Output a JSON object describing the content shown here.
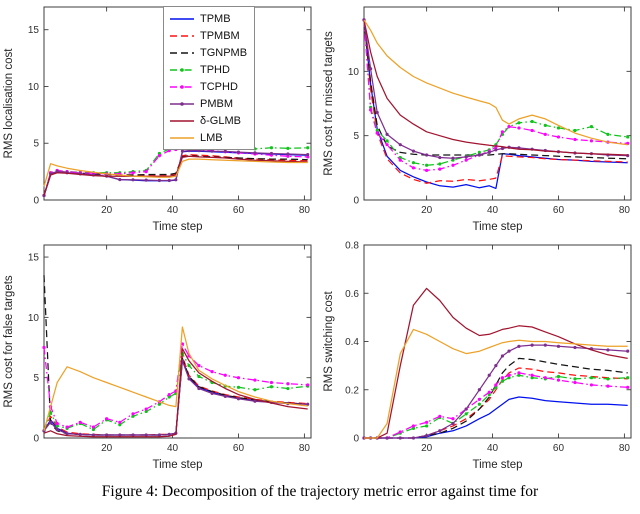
{
  "caption": "Figure 4: Decomposition of the trajectory metric error against time for",
  "legend": {
    "position": "inside-top-right-of-first-subplot",
    "entries": [
      "TPMB",
      "TPMBM",
      "TGNPMB",
      "TPHD",
      "TCPHD",
      "PMBM",
      "δ-GLMB",
      "LMB"
    ]
  },
  "styles": {
    "TPMB": {
      "color": "#0010EE",
      "dash": "solid",
      "marker": false
    },
    "TPMBM": {
      "color": "#FF1010",
      "dash": "dashed",
      "marker": false
    },
    "TGNPMB": {
      "color": "#151515",
      "dash": "dashed",
      "marker": false
    },
    "TPHD": {
      "color": "#10C41C",
      "dash": "dashdot",
      "marker": true
    },
    "TCPHD": {
      "color": "#FF00FF",
      "dash": "dashdot",
      "marker": true
    },
    "PMBM": {
      "color": "#7E2F8E",
      "dash": "solid",
      "marker": true
    },
    "δ-GLMB": {
      "color": "#A2142F",
      "dash": "solid",
      "marker": false
    },
    "LMB": {
      "color": "#EDA128",
      "dash": "solid",
      "marker": false
    }
  },
  "chart_data": [
    {
      "type": "line",
      "title": "",
      "xlabel": "Time step",
      "ylabel": "RMS localisation cost",
      "xlim": [
        1,
        82
      ],
      "ylim": [
        0,
        17
      ],
      "xticks": [
        20,
        40,
        60,
        80
      ],
      "yticks": [
        0,
        5,
        10,
        15
      ],
      "x": [
        1,
        3,
        5,
        8,
        12,
        16,
        20,
        24,
        28,
        32,
        36,
        39,
        41,
        43,
        45,
        48,
        52,
        56,
        60,
        65,
        70,
        75,
        81
      ],
      "series": [
        {
          "name": "TPMB",
          "values": [
            0.4,
            2.2,
            2.5,
            2.4,
            2.3,
            2.2,
            2.1,
            1.8,
            1.75,
            1.7,
            1.7,
            1.7,
            1.75,
            4.25,
            4.3,
            4.3,
            4.25,
            4.2,
            4.15,
            4.1,
            4.05,
            4.0,
            3.95
          ]
        },
        {
          "name": "TPMBM",
          "values": [
            0.4,
            2.3,
            2.5,
            2.45,
            2.35,
            2.3,
            2.25,
            2.2,
            2.2,
            2.2,
            2.2,
            2.2,
            2.3,
            3.9,
            4.0,
            3.95,
            3.9,
            3.8,
            3.7,
            3.6,
            3.55,
            3.5,
            3.45
          ]
        },
        {
          "name": "TGNPMB",
          "values": [
            0.4,
            2.3,
            2.5,
            2.45,
            2.35,
            2.3,
            2.25,
            2.2,
            2.2,
            2.25,
            2.25,
            2.25,
            2.35,
            3.8,
            3.9,
            3.85,
            3.8,
            3.75,
            3.7,
            3.65,
            3.6,
            3.6,
            3.55
          ]
        },
        {
          "name": "TPHD",
          "values": [
            0.4,
            2.4,
            2.6,
            2.5,
            2.45,
            2.4,
            2.4,
            2.4,
            2.5,
            2.6,
            4.1,
            4.5,
            4.55,
            4.6,
            4.65,
            4.6,
            4.55,
            4.65,
            4.6,
            4.5,
            4.6,
            4.55,
            4.6
          ]
        },
        {
          "name": "TCPHD",
          "values": [
            0.4,
            2.4,
            2.6,
            2.5,
            2.4,
            2.35,
            2.3,
            2.3,
            2.4,
            2.5,
            3.9,
            4.35,
            4.45,
            4.5,
            4.5,
            4.45,
            4.35,
            4.25,
            4.15,
            4.05,
            3.95,
            3.85,
            3.8
          ]
        },
        {
          "name": "PMBM",
          "values": [
            0.4,
            2.3,
            2.5,
            2.4,
            2.3,
            2.2,
            2.1,
            1.8,
            1.78,
            1.75,
            1.72,
            1.72,
            1.78,
            4.3,
            4.35,
            4.35,
            4.3,
            4.28,
            4.22,
            4.15,
            4.1,
            4.05,
            4.0
          ]
        },
        {
          "name": "δ-GLMB",
          "values": [
            0.4,
            2.2,
            2.4,
            2.35,
            2.25,
            2.15,
            2.1,
            2.1,
            2.1,
            2.1,
            2.1,
            2.1,
            2.2,
            3.75,
            3.85,
            3.8,
            3.75,
            3.7,
            3.6,
            3.5,
            3.45,
            3.4,
            3.35
          ]
        },
        {
          "name": "LMB",
          "values": [
            1.2,
            3.2,
            3.0,
            2.8,
            2.6,
            2.45,
            2.3,
            2.2,
            2.1,
            2.05,
            2.0,
            2.0,
            2.1,
            3.4,
            3.6,
            3.6,
            3.55,
            3.5,
            3.45,
            3.4,
            3.35,
            3.3,
            3.3
          ]
        }
      ]
    },
    {
      "type": "line",
      "title": "",
      "xlabel": "Time step",
      "ylabel": "RMS cost for missed targets",
      "xlim": [
        1,
        82
      ],
      "ylim": [
        0,
        15
      ],
      "xticks": [
        20,
        40,
        60,
        80
      ],
      "yticks": [
        0,
        5,
        10
      ],
      "x": [
        1,
        3,
        5,
        8,
        12,
        16,
        20,
        24,
        28,
        32,
        36,
        39,
        41,
        43,
        45,
        48,
        52,
        56,
        60,
        65,
        70,
        75,
        81
      ],
      "series": [
        {
          "name": "TPMB",
          "values": [
            14,
            9.0,
            5.5,
            3.4,
            2.3,
            1.8,
            1.4,
            1.1,
            1.0,
            1.2,
            0.95,
            1.1,
            0.9,
            3.6,
            3.55,
            3.45,
            3.35,
            3.25,
            3.15,
            3.1,
            3.0,
            2.95,
            2.9
          ]
        },
        {
          "name": "TPMBM",
          "values": [
            14,
            8.6,
            5.2,
            3.2,
            2.1,
            1.6,
            1.3,
            1.5,
            1.45,
            1.6,
            1.5,
            1.6,
            1.7,
            3.45,
            3.4,
            3.35,
            3.3,
            3.2,
            3.15,
            3.1,
            3.05,
            3.0,
            2.95
          ]
        },
        {
          "name": "TGNPMB",
          "values": [
            14,
            9.2,
            5.8,
            4.2,
            3.7,
            3.55,
            3.5,
            3.5,
            3.5,
            3.5,
            3.5,
            3.5,
            3.55,
            3.6,
            3.6,
            3.55,
            3.5,
            3.45,
            3.4,
            3.35,
            3.3,
            3.25,
            3.2
          ]
        },
        {
          "name": "TPHD",
          "values": [
            14,
            7.2,
            5.4,
            4.6,
            3.3,
            2.9,
            2.7,
            2.8,
            3.1,
            3.4,
            3.7,
            3.9,
            4.3,
            5.1,
            5.7,
            6.0,
            6.1,
            5.8,
            5.6,
            5.4,
            5.7,
            5.1,
            4.9
          ]
        },
        {
          "name": "TCPHD",
          "values": [
            14,
            7.0,
            5.2,
            4.3,
            3.1,
            2.5,
            2.3,
            2.4,
            2.7,
            3.1,
            3.5,
            3.8,
            4.1,
            5.3,
            5.7,
            5.6,
            5.4,
            5.1,
            4.9,
            4.7,
            4.6,
            4.5,
            4.4
          ]
        },
        {
          "name": "PMBM",
          "values": [
            14,
            10.2,
            6.8,
            5.1,
            4.3,
            3.8,
            3.5,
            3.3,
            3.25,
            3.35,
            3.5,
            3.7,
            3.9,
            4.0,
            4.1,
            4.05,
            3.95,
            3.85,
            3.75,
            3.65,
            3.6,
            3.5,
            3.45
          ]
        },
        {
          "name": "δ-GLMB",
          "values": [
            14,
            11.5,
            9.6,
            7.9,
            6.6,
            5.9,
            5.3,
            5.0,
            4.7,
            4.5,
            4.35,
            4.25,
            4.2,
            4.15,
            4.05,
            3.95,
            3.9,
            3.8,
            3.75,
            3.65,
            3.6,
            3.55,
            3.5
          ]
        },
        {
          "name": "LMB",
          "values": [
            14,
            13.2,
            12.2,
            11.2,
            10.3,
            9.6,
            9.1,
            8.7,
            8.3,
            8.0,
            7.7,
            7.5,
            7.2,
            6.2,
            5.9,
            6.3,
            6.6,
            6.3,
            5.8,
            5.2,
            4.8,
            4.5,
            4.3
          ]
        }
      ]
    },
    {
      "type": "line",
      "title": "",
      "xlabel": "Time step",
      "ylabel": "RMS cost for false targets",
      "xlim": [
        1,
        82
      ],
      "ylim": [
        0,
        16
      ],
      "xticks": [
        20,
        40,
        60,
        80
      ],
      "yticks": [
        0,
        5,
        10,
        15
      ],
      "x": [
        1,
        3,
        5,
        8,
        12,
        16,
        20,
        24,
        28,
        32,
        36,
        39,
        41,
        43,
        45,
        48,
        52,
        56,
        60,
        65,
        70,
        75,
        81
      ],
      "series": [
        {
          "name": "TPMB",
          "values": [
            0.6,
            1.5,
            0.8,
            0.4,
            0.3,
            0.25,
            0.25,
            0.25,
            0.25,
            0.25,
            0.25,
            0.3,
            0.4,
            6.5,
            5.0,
            4.2,
            3.8,
            3.5,
            3.3,
            3.1,
            3.0,
            2.9,
            2.8
          ]
        },
        {
          "name": "TPMBM",
          "values": [
            0.6,
            1.8,
            0.9,
            0.5,
            0.35,
            0.3,
            0.25,
            0.25,
            0.25,
            0.25,
            0.3,
            0.3,
            0.4,
            6.8,
            5.2,
            4.3,
            3.9,
            3.6,
            3.4,
            3.2,
            3.05,
            2.95,
            2.85
          ]
        },
        {
          "name": "TGNPMB",
          "values": [
            13.5,
            1.2,
            0.6,
            0.35,
            0.3,
            0.25,
            0.25,
            0.25,
            0.25,
            0.25,
            0.25,
            0.3,
            0.4,
            6.6,
            5.1,
            4.25,
            3.85,
            3.55,
            3.35,
            3.15,
            3.0,
            2.9,
            2.8
          ]
        },
        {
          "name": "TPHD",
          "values": [
            0.6,
            2.1,
            1.0,
            0.8,
            1.2,
            0.7,
            1.5,
            1.1,
            1.8,
            2.2,
            2.8,
            3.4,
            3.7,
            7.0,
            6.0,
            5.1,
            4.6,
            4.3,
            4.2,
            4.0,
            4.25,
            4.1,
            4.3
          ]
        },
        {
          "name": "TCPHD",
          "values": [
            7.5,
            2.6,
            1.2,
            0.9,
            1.3,
            0.9,
            1.6,
            1.3,
            2.0,
            2.4,
            3.0,
            3.6,
            3.9,
            7.8,
            6.8,
            6.0,
            5.5,
            5.2,
            5.0,
            4.8,
            4.6,
            4.5,
            4.4
          ]
        },
        {
          "name": "PMBM",
          "values": [
            0.6,
            1.3,
            0.7,
            0.35,
            0.3,
            0.25,
            0.25,
            0.25,
            0.25,
            0.25,
            0.25,
            0.3,
            0.4,
            6.4,
            4.9,
            4.1,
            3.7,
            3.45,
            3.25,
            3.05,
            2.95,
            2.85,
            2.8
          ]
        },
        {
          "name": "δ-GLMB",
          "values": [
            0.4,
            0.6,
            0.35,
            0.2,
            0.15,
            0.1,
            0.1,
            0.1,
            0.1,
            0.1,
            0.1,
            0.15,
            0.3,
            7.4,
            6.4,
            5.4,
            4.7,
            4.1,
            3.6,
            3.2,
            2.9,
            2.6,
            2.4
          ]
        },
        {
          "name": "LMB",
          "values": [
            0.6,
            2.6,
            4.6,
            5.9,
            5.5,
            5.0,
            4.6,
            4.2,
            3.8,
            3.4,
            3.0,
            2.7,
            2.6,
            9.2,
            7.0,
            5.6,
            4.9,
            4.35,
            3.85,
            3.4,
            3.05,
            2.85,
            2.65
          ]
        }
      ]
    },
    {
      "type": "line",
      "title": "",
      "xlabel": "Time step",
      "ylabel": "RMS switching cost",
      "xlim": [
        1,
        82
      ],
      "ylim": [
        0,
        0.8
      ],
      "xticks": [
        20,
        40,
        60,
        80
      ],
      "yticks": [
        0,
        0.2,
        0.4,
        0.6,
        0.8
      ],
      "x": [
        1,
        3,
        5,
        8,
        12,
        16,
        20,
        24,
        28,
        32,
        36,
        39,
        41,
        43,
        45,
        48,
        52,
        56,
        60,
        65,
        70,
        75,
        81
      ],
      "series": [
        {
          "name": "TPMB",
          "values": [
            0,
            0,
            0,
            0,
            0,
            0,
            0.005,
            0.02,
            0.03,
            0.05,
            0.08,
            0.1,
            0.12,
            0.14,
            0.16,
            0.17,
            0.165,
            0.155,
            0.15,
            0.145,
            0.14,
            0.14,
            0.135
          ]
        },
        {
          "name": "TPMBM",
          "values": [
            0,
            0,
            0,
            0,
            0,
            0,
            0.01,
            0.03,
            0.05,
            0.08,
            0.12,
            0.16,
            0.2,
            0.24,
            0.27,
            0.29,
            0.285,
            0.275,
            0.27,
            0.26,
            0.255,
            0.25,
            0.245
          ]
        },
        {
          "name": "TGNPMB",
          "values": [
            0,
            0,
            0,
            0,
            0,
            0,
            0.01,
            0.02,
            0.04,
            0.07,
            0.12,
            0.17,
            0.22,
            0.27,
            0.3,
            0.33,
            0.325,
            0.315,
            0.305,
            0.295,
            0.285,
            0.28,
            0.27
          ]
        },
        {
          "name": "TPHD",
          "values": [
            0,
            0,
            0,
            0,
            0.02,
            0.04,
            0.05,
            0.085,
            0.06,
            0.1,
            0.14,
            0.18,
            0.21,
            0.235,
            0.25,
            0.26,
            0.25,
            0.245,
            0.255,
            0.245,
            0.25,
            0.245,
            0.25
          ]
        },
        {
          "name": "TCPHD",
          "values": [
            0,
            0,
            0,
            0,
            0.025,
            0.05,
            0.065,
            0.09,
            0.08,
            0.12,
            0.16,
            0.19,
            0.22,
            0.25,
            0.26,
            0.27,
            0.26,
            0.25,
            0.24,
            0.23,
            0.22,
            0.215,
            0.21
          ]
        },
        {
          "name": "PMBM",
          "values": [
            0,
            0,
            0,
            0,
            0,
            0,
            0.01,
            0.03,
            0.06,
            0.12,
            0.2,
            0.26,
            0.3,
            0.34,
            0.36,
            0.38,
            0.385,
            0.385,
            0.38,
            0.375,
            0.37,
            0.365,
            0.36
          ]
        },
        {
          "name": "δ-GLMB",
          "values": [
            0,
            0,
            0,
            0.02,
            0.3,
            0.55,
            0.62,
            0.57,
            0.5,
            0.455,
            0.425,
            0.43,
            0.44,
            0.45,
            0.455,
            0.465,
            0.46,
            0.44,
            0.42,
            0.39,
            0.365,
            0.345,
            0.33
          ]
        },
        {
          "name": "LMB",
          "values": [
            0,
            0,
            0,
            0.06,
            0.35,
            0.45,
            0.43,
            0.4,
            0.37,
            0.35,
            0.36,
            0.375,
            0.385,
            0.395,
            0.4,
            0.405,
            0.4,
            0.4,
            0.395,
            0.39,
            0.385,
            0.38,
            0.38
          ]
        }
      ]
    }
  ]
}
